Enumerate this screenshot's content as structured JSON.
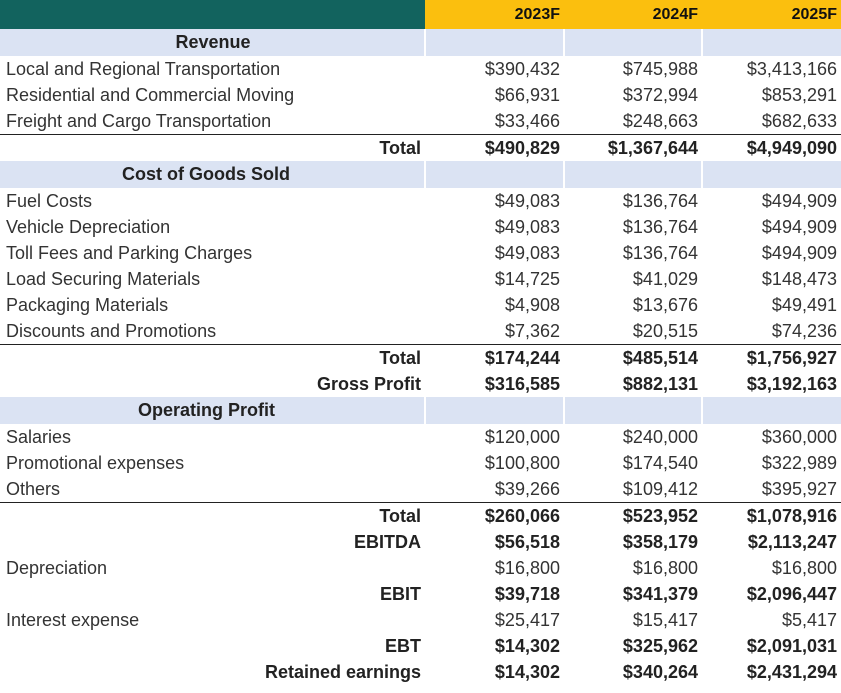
{
  "columns": [
    "2023F",
    "2024F",
    "2025F"
  ],
  "revenue": {
    "title": "Revenue",
    "items": [
      {
        "label": "Local and Regional Transportation",
        "values": [
          "$390,432",
          "$745,988",
          "$3,413,166"
        ]
      },
      {
        "label": "Residential and Commercial Moving",
        "values": [
          "$66,931",
          "$372,994",
          "$853,291"
        ]
      },
      {
        "label": "Freight and Cargo Transportation",
        "values": [
          "$33,466",
          "$248,663",
          "$682,633"
        ]
      }
    ],
    "total": {
      "label": "Total",
      "values": [
        "$490,829",
        "$1,367,644",
        "$4,949,090"
      ]
    }
  },
  "cogs": {
    "title": "Cost of Goods Sold",
    "items": [
      {
        "label": "Fuel Costs",
        "values": [
          "$49,083",
          "$136,764",
          "$494,909"
        ]
      },
      {
        "label": "Vehicle Depreciation",
        "values": [
          "$49,083",
          "$136,764",
          "$494,909"
        ]
      },
      {
        "label": "Toll Fees and Parking Charges",
        "values": [
          "$49,083",
          "$136,764",
          "$494,909"
        ]
      },
      {
        "label": "Load Securing Materials",
        "values": [
          "$14,725",
          "$41,029",
          "$148,473"
        ]
      },
      {
        "label": "Packaging Materials",
        "values": [
          "$4,908",
          "$13,676",
          "$49,491"
        ]
      },
      {
        "label": "Discounts and Promotions",
        "values": [
          "$7,362",
          "$20,515",
          "$74,236"
        ]
      }
    ],
    "total": {
      "label": "Total",
      "values": [
        "$174,244",
        "$485,514",
        "$1,756,927"
      ]
    },
    "gross_profit": {
      "label": "Gross Profit",
      "values": [
        "$316,585",
        "$882,131",
        "$3,192,163"
      ]
    }
  },
  "opex": {
    "title": "Operating Profit",
    "items": [
      {
        "label": "Salaries",
        "values": [
          "$120,000",
          "$240,000",
          "$360,000"
        ]
      },
      {
        "label": "Promotional expenses",
        "values": [
          "$100,800",
          "$174,540",
          "$322,989"
        ]
      },
      {
        "label": "Others",
        "values": [
          "$39,266",
          "$109,412",
          "$395,927"
        ]
      }
    ],
    "total": {
      "label": "Total",
      "values": [
        "$260,066",
        "$523,952",
        "$1,078,916"
      ]
    },
    "ebitda": {
      "label": "EBITDA",
      "values": [
        "$56,518",
        "$358,179",
        "$2,113,247"
      ]
    },
    "depreciation": {
      "label": "Depreciation",
      "values": [
        "$16,800",
        "$16,800",
        "$16,800"
      ]
    },
    "ebit": {
      "label": "EBIT",
      "values": [
        "$39,718",
        "$341,379",
        "$2,096,447"
      ]
    },
    "interest": {
      "label": "Interest expense",
      "values": [
        "$25,417",
        "$15,417",
        "$5,417"
      ]
    },
    "ebt": {
      "label": "EBT",
      "values": [
        "$14,302",
        "$325,962",
        "$2,091,031"
      ]
    },
    "retained": {
      "label": "Retained earnings",
      "values": [
        "$14,302",
        "$340,264",
        "$2,431,294"
      ]
    }
  }
}
